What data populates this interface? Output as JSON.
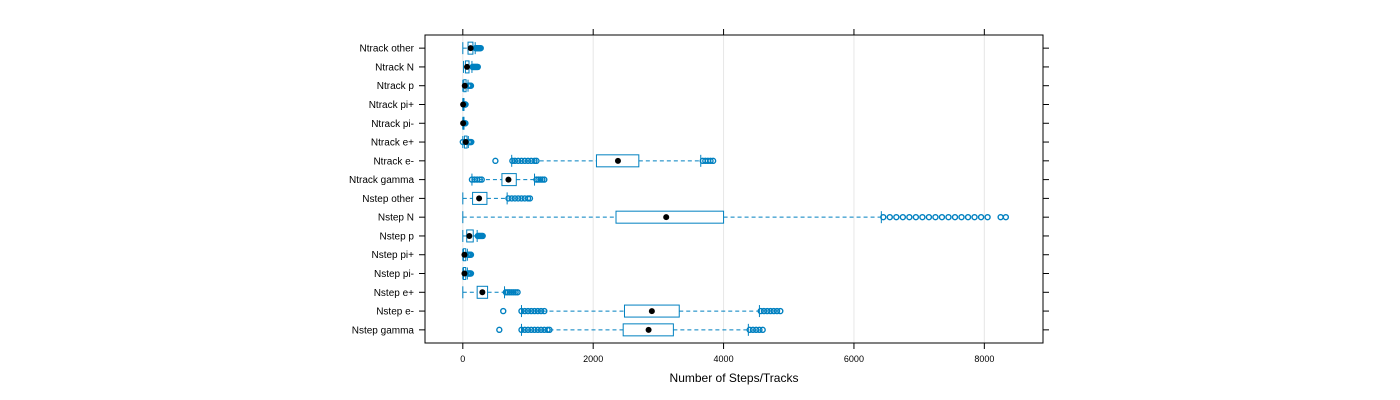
{
  "chart_data": {
    "type": "boxplot",
    "orientation": "horizontal",
    "title": "",
    "xlabel": "Number of Steps/Tracks",
    "ylabel": "",
    "xlim": [
      -580,
      8900
    ],
    "xticks": [
      0,
      2000,
      4000,
      6000,
      8000
    ],
    "grid": true,
    "categories": [
      "Ntrack other",
      "Ntrack N",
      "Ntrack p",
      "Ntrack pi+",
      "Ntrack pi-",
      "Ntrack e+",
      "Ntrack e-",
      "Ntrack gamma",
      "Nstep other",
      "Nstep N",
      "Nstep p",
      "Nstep pi+",
      "Nstep pi-",
      "Nstep e+",
      "Nstep e-",
      "Nstep gamma"
    ],
    "series": [
      {
        "label": "Ntrack other",
        "whisker_low": 0,
        "q1": 80,
        "median": 120,
        "q3": 155,
        "whisker_high": 190,
        "outliers": [
          195,
          205,
          215,
          225,
          235,
          245,
          255,
          265,
          275
        ]
      },
      {
        "label": "Ntrack N",
        "whisker_low": 10,
        "q1": 40,
        "median": 65,
        "q3": 95,
        "whisker_high": 140,
        "outliers": [
          150,
          160,
          170,
          180,
          190,
          200,
          210,
          220,
          230
        ]
      },
      {
        "label": "Ntrack p",
        "whisker_low": 0,
        "q1": 15,
        "median": 30,
        "q3": 50,
        "whisker_high": 80,
        "outliers": [
          85,
          95,
          105,
          115,
          125
        ]
      },
      {
        "label": "Ntrack pi+",
        "whisker_low": 0,
        "q1": 2,
        "median": 5,
        "q3": 9,
        "whisker_high": 18,
        "outliers": [
          22,
          28,
          35,
          42
        ]
      },
      {
        "label": "Ntrack pi-",
        "whisker_low": 0,
        "q1": 2,
        "median": 5,
        "q3": 8,
        "whisker_high": 17,
        "outliers": [
          22,
          28,
          34,
          40
        ]
      },
      {
        "label": "Ntrack e+",
        "whisker_low": 0,
        "q1": 25,
        "median": 45,
        "q3": 65,
        "whisker_high": 85,
        "outliers": [
          0,
          90,
          100,
          110,
          120,
          130
        ]
      },
      {
        "label": "Ntrack e-",
        "whisker_low": 750,
        "q1": 2050,
        "median": 2380,
        "q3": 2700,
        "whisker_high": 3650,
        "outliers": [
          500,
          760,
          800,
          850,
          900,
          950,
          1000,
          1050,
          1100,
          1130,
          3680,
          3720,
          3760,
          3800,
          3840
        ]
      },
      {
        "label": "Ntrack gamma",
        "whisker_low": 140,
        "q1": 600,
        "median": 700,
        "q3": 820,
        "whisker_high": 1100,
        "outliers": [
          140,
          180,
          220,
          260,
          290,
          1130,
          1160,
          1190,
          1220,
          1250
        ]
      },
      {
        "label": "Nstep other",
        "whisker_low": 0,
        "q1": 150,
        "median": 250,
        "q3": 370,
        "whisker_high": 680,
        "outliers": [
          700,
          750,
          800,
          850,
          900,
          950,
          1000,
          1030
        ]
      },
      {
        "label": "Nstep N",
        "whisker_low": 0,
        "q1": 2350,
        "median": 3120,
        "q3": 4000,
        "whisker_high": 6420,
        "outliers": [
          6450,
          6550,
          6650,
          6750,
          6850,
          6950,
          7050,
          7150,
          7250,
          7350,
          7450,
          7550,
          7650,
          7750,
          7850,
          7950,
          8050,
          8250,
          8330
        ]
      },
      {
        "label": "Nstep p",
        "whisker_low": 0,
        "q1": 60,
        "median": 100,
        "q3": 160,
        "whisker_high": 220,
        "outliers": [
          230,
          245,
          260,
          275,
          290,
          305
        ]
      },
      {
        "label": "Nstep pi+",
        "whisker_low": 0,
        "q1": 10,
        "median": 25,
        "q3": 45,
        "whisker_high": 70,
        "outliers": [
          75,
          85,
          95,
          105,
          115,
          125
        ]
      },
      {
        "label": "Nstep pi-",
        "whisker_low": 0,
        "q1": 10,
        "median": 25,
        "q3": 45,
        "whisker_high": 70,
        "outliers": [
          75,
          85,
          95,
          105,
          115,
          125
        ]
      },
      {
        "label": "Nstep e+",
        "whisker_low": 0,
        "q1": 220,
        "median": 300,
        "q3": 380,
        "whisker_high": 640,
        "outliers": [
          660,
          690,
          720,
          750,
          780,
          810,
          840
        ]
      },
      {
        "label": "Nstep e-",
        "whisker_low": 900,
        "q1": 2480,
        "median": 2900,
        "q3": 3320,
        "whisker_high": 4550,
        "outliers": [
          620,
          900,
          950,
          1000,
          1050,
          1100,
          1150,
          1200,
          1250,
          4570,
          4620,
          4670,
          4720,
          4770,
          4820,
          4870
        ]
      },
      {
        "label": "Nstep gamma",
        "whisker_low": 900,
        "q1": 2460,
        "median": 2850,
        "q3": 3230,
        "whisker_high": 4380,
        "outliers": [
          560,
          900,
          950,
          1000,
          1050,
          1100,
          1150,
          1200,
          1250,
          1300,
          1330,
          4400,
          4450,
          4500,
          4550,
          4600
        ]
      }
    ],
    "colors": {
      "box": "#0080c0",
      "median_dot": "#000000",
      "outlier": "#0080c0",
      "grid": "#e6e6e6",
      "frame": "#000000"
    }
  }
}
